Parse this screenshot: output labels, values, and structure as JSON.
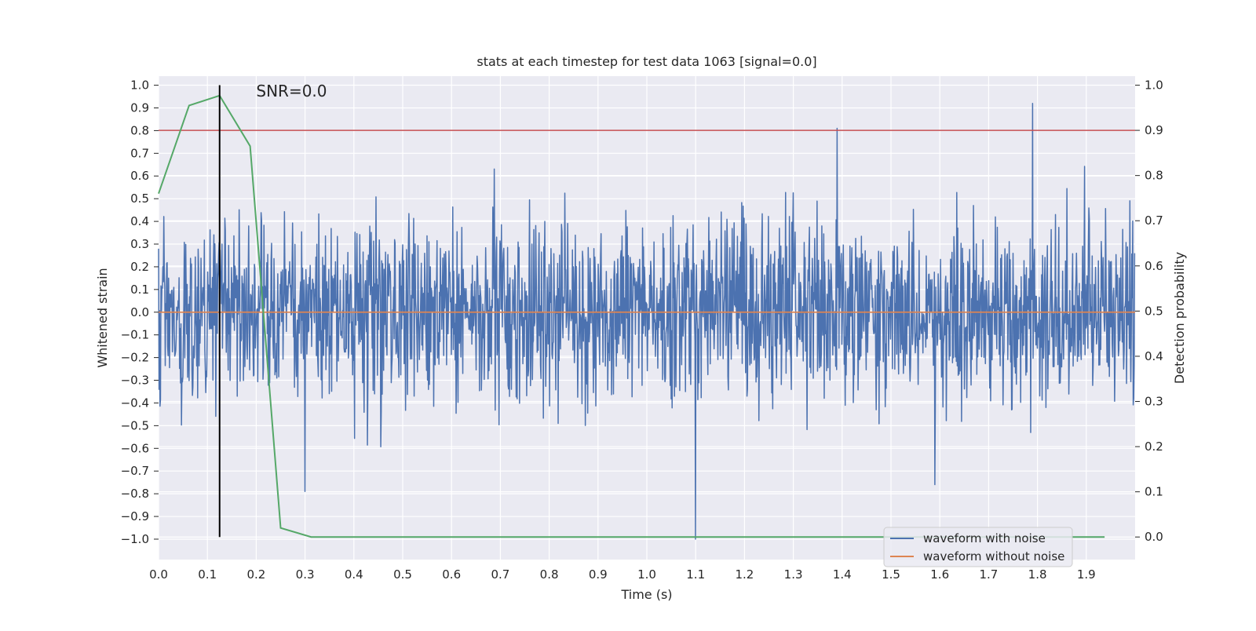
{
  "chart_data": {
    "type": "line",
    "title": "stats at each timestep for test data 1063 [signal=0.0]",
    "annotation": "SNR=0.0",
    "xlabel": "Time (s)",
    "ylabel_left": "Whitened strain",
    "ylabel_right": "Detection probability",
    "xlim": [
      0.0,
      2.0
    ],
    "ylim_left": [
      -1.09,
      1.04
    ],
    "ylim_right": [
      -0.05,
      1.02
    ],
    "x_ticks": [
      0.0,
      0.1,
      0.2,
      0.3,
      0.4,
      0.5,
      0.6,
      0.7,
      0.8,
      0.9,
      1.0,
      1.1,
      1.2,
      1.3,
      1.4,
      1.5,
      1.6,
      1.7,
      1.8,
      1.9
    ],
    "x_tick_labels": [
      "0.0",
      "0.1",
      "0.2",
      "0.3",
      "0.4",
      "0.5",
      "0.6",
      "0.7",
      "0.8",
      "0.9",
      "1.0",
      "1.1",
      "1.2",
      "1.3",
      "1.4",
      "1.5",
      "1.6",
      "1.7",
      "1.8",
      "1.9"
    ],
    "y_left_ticks": [
      1.0,
      0.9,
      0.8,
      0.7,
      0.6,
      0.5,
      0.4,
      0.3,
      0.2,
      0.1,
      0.0,
      -0.1,
      -0.2,
      -0.3,
      -0.4,
      -0.5,
      -0.6,
      -0.7,
      -0.8,
      -0.9,
      -1.0
    ],
    "y_left_tick_labels": [
      "1.0",
      "0.9",
      "0.8",
      "0.7",
      "0.6",
      "0.5",
      "0.4",
      "0.3",
      "0.2",
      "0.1",
      "0.0",
      "−0.1",
      "−0.2",
      "−0.3",
      "−0.4",
      "−0.5",
      "−0.6",
      "−0.7",
      "−0.8",
      "−0.9",
      "−1.0"
    ],
    "y_right_ticks": [
      1.0,
      0.9,
      0.8,
      0.7,
      0.6,
      0.5,
      0.4,
      0.3,
      0.2,
      0.1,
      0.0
    ],
    "y_right_tick_labels": [
      "1.0",
      "0.9",
      "0.8",
      "0.7",
      "0.6",
      "0.5",
      "0.4",
      "0.3",
      "0.2",
      "0.1",
      "0.0"
    ],
    "series": [
      {
        "name": "waveform with noise",
        "axis": "left",
        "color": "#4c72b0",
        "style": "noise signal, 2048 samples over 0-2 s, roughly uniform amplitude about ±0.5 with peaks near 0.92 at t=1.79 and 0.81 at t=1.39, minimum -1.0 at t=1.1",
        "peaks": [
          [
            1.39,
            0.81
          ],
          [
            1.79,
            0.92
          ],
          [
            1.1,
            -1.0
          ],
          [
            0.3,
            -0.79
          ],
          [
            1.59,
            -0.76
          ]
        ]
      },
      {
        "name": "waveform without noise",
        "axis": "left",
        "color": "#dd8452",
        "x": [
          0.0,
          2.0
        ],
        "y": [
          0.0,
          0.0
        ]
      },
      {
        "axis": "right",
        "color": "#55a868",
        "x": [
          0.0,
          0.0625,
          0.125,
          0.1875,
          0.25,
          0.3125,
          0.375,
          0.4375,
          0.5,
          0.5625,
          0.625,
          0.6875,
          0.75,
          0.8125,
          0.875,
          0.9375,
          1.0,
          1.0625,
          1.125,
          1.1875,
          1.25,
          1.3125,
          1.375,
          1.4375,
          1.5,
          1.5625,
          1.625,
          1.6875,
          1.75,
          1.8125,
          1.875,
          1.9375
        ],
        "y": [
          0.76,
          0.955,
          0.977,
          0.865,
          0.02,
          0.0,
          0.0,
          0.0,
          0.0,
          0.0,
          0.0,
          0.0,
          0.0,
          0.0,
          0.0,
          0.0,
          0.0,
          0.0,
          0.0,
          0.0,
          0.0,
          0.0,
          0.0,
          0.0,
          0.0,
          0.0,
          0.0,
          0.0,
          0.0,
          0.0,
          0.0,
          0.0
        ]
      }
    ],
    "threshold_line": {
      "axis": "right",
      "value": 0.9,
      "color": "#c44e52"
    },
    "marker_line": {
      "x": 0.125,
      "color": "#000000"
    },
    "legend": {
      "placement": "lower-right",
      "entries": [
        {
          "label": "waveform with noise",
          "color": "#4c72b0"
        },
        {
          "label": "waveform without noise",
          "color": "#dd8452"
        }
      ]
    },
    "grid": true,
    "background": "#eaeaf2"
  }
}
